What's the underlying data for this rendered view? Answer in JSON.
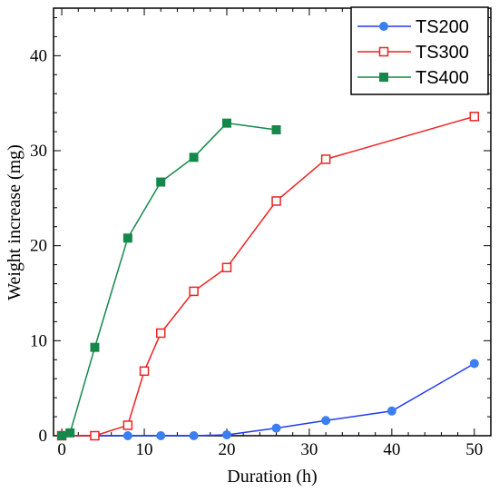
{
  "chart_data": {
    "type": "line",
    "xlabel": "Duration (h)",
    "ylabel": "Weight increase (mg)",
    "xlim": [
      -1,
      52
    ],
    "ylim": [
      0,
      45
    ],
    "xticks": [
      0,
      10,
      20,
      30,
      40,
      50
    ],
    "yticks": [
      0,
      10,
      20,
      30,
      40
    ],
    "grid": false,
    "legend_position": "top-right",
    "series": [
      {
        "name": "TS200",
        "color": "#1f3bf2",
        "marker_color": "#3a7ef0",
        "marker": "filled-circle",
        "x": [
          0,
          4,
          8,
          12,
          16,
          20,
          26,
          32,
          40,
          50
        ],
        "y": [
          0,
          0,
          0,
          0,
          0,
          0.1,
          0.8,
          1.6,
          2.6,
          7.6
        ]
      },
      {
        "name": "TS300",
        "color": "#ee2222",
        "marker": "open-square",
        "x": [
          0,
          4,
          8,
          10,
          12,
          16,
          20,
          26,
          32,
          50
        ],
        "y": [
          0,
          0,
          1.1,
          6.8,
          10.8,
          15.2,
          17.7,
          24.7,
          29.1,
          33.6
        ]
      },
      {
        "name": "TS400",
        "color": "#13884a",
        "marker": "filled-square",
        "x": [
          0,
          1,
          4,
          8,
          12,
          16,
          20,
          26
        ],
        "y": [
          0,
          0.3,
          9.3,
          20.8,
          26.7,
          29.3,
          32.9,
          32.2
        ]
      }
    ]
  }
}
